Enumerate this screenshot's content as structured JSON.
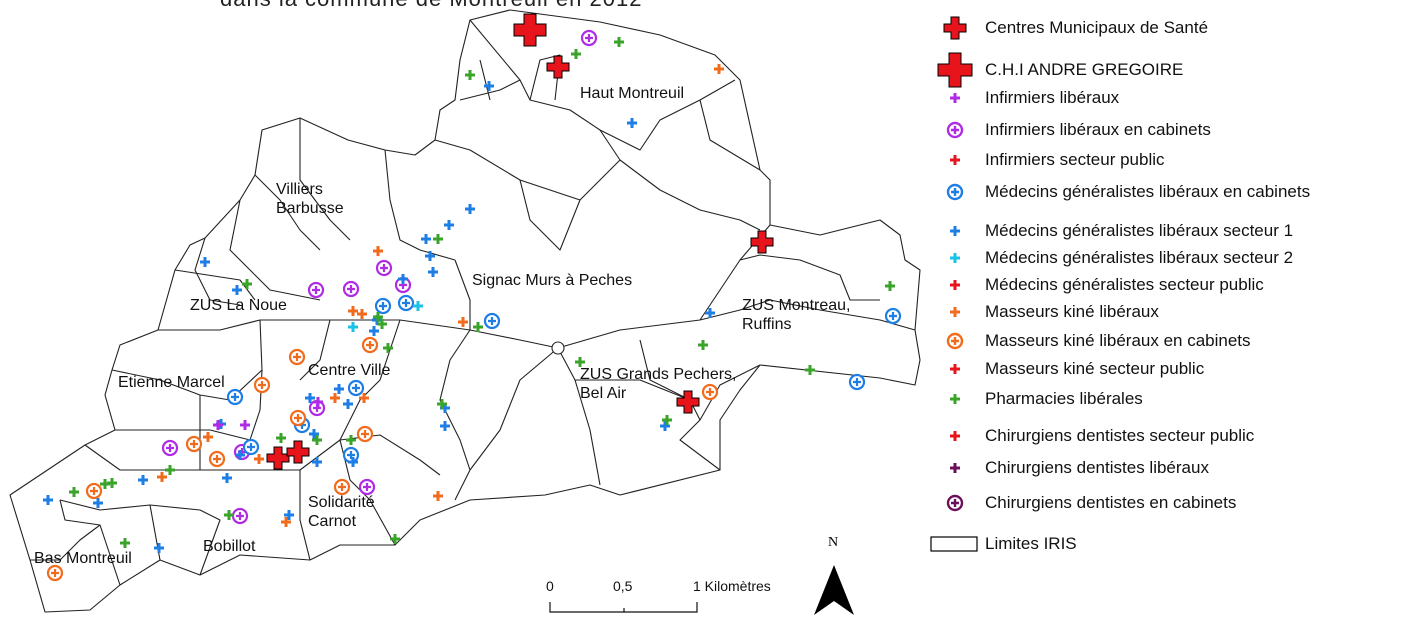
{
  "map": {
    "title_partial": "dans la commune de Montreuil en 2012",
    "areas": [
      {
        "id": "haut-montreuil",
        "label": "Haut Montreuil"
      },
      {
        "id": "villiers-barbusse",
        "label": "Villiers\nBarbusse"
      },
      {
        "id": "signac",
        "label": "Signac Murs à Peches"
      },
      {
        "id": "zus-la-noue",
        "label": "ZUS La Noue"
      },
      {
        "id": "zus-montreau",
        "label": "ZUS Montreau,\nRuffins"
      },
      {
        "id": "centre-ville",
        "label": "Centre Ville"
      },
      {
        "id": "etienne-marcel",
        "label": "Etienne Marcel"
      },
      {
        "id": "zus-grands-pechers",
        "label": "ZUS Grands Pechers,\nBel Air"
      },
      {
        "id": "solidarite-carnot",
        "label": "Solidarité\nCarnot"
      },
      {
        "id": "bobillot",
        "label": "Bobillot"
      },
      {
        "id": "bas-montreuil",
        "label": "Bas Montreuil"
      }
    ]
  },
  "legend": {
    "items": [
      {
        "symbol": "big-red-cross",
        "label": "Centres Municipaux de Santé",
        "color": "#e8141b"
      },
      {
        "symbol": "huge-red-cross",
        "label": "C.H.I ANDRE GREGOIRE",
        "color": "#e8141b"
      },
      {
        "symbol": "small-cross",
        "label": "Infirmiers libéraux",
        "color": "#b02be6"
      },
      {
        "symbol": "ring-cross",
        "label": "Infirmiers libéraux en cabinets",
        "color": "#b02be6"
      },
      {
        "symbol": "small-cross",
        "label": "Infirmiers secteur public",
        "color": "#e8141b"
      },
      {
        "symbol": "ring-cross",
        "label": "Médecins généralistes libéraux en cabinets",
        "color": "#1d7ee6"
      },
      {
        "symbol": "small-cross",
        "label": "Médecins généralistes libéraux secteur 1",
        "color": "#1d7ee6"
      },
      {
        "symbol": "small-cross",
        "label": "Médecins généralistes libéraux secteur 2",
        "color": "#19c2e6"
      },
      {
        "symbol": "small-cross",
        "label": "Médecins généralistes secteur public",
        "color": "#e8141b"
      },
      {
        "symbol": "small-cross",
        "label": "Masseurs kiné libéraux",
        "color": "#f26b1d"
      },
      {
        "symbol": "ring-cross",
        "label": "Masseurs kiné libéraux en cabinets",
        "color": "#f26b1d"
      },
      {
        "symbol": "small-cross",
        "label": "Masseurs kiné secteur public",
        "color": "#e8141b"
      },
      {
        "symbol": "small-cross",
        "label": "Pharmacies libérales",
        "color": "#3aa329"
      },
      {
        "symbol": "small-cross",
        "label": "Chirurgiens dentistes secteur public",
        "color": "#e8141b"
      },
      {
        "symbol": "small-cross",
        "label": "Chirurgiens dentistes libéraux",
        "color": "#6b0f5a"
      },
      {
        "symbol": "ring-cross",
        "label": "Chirurgiens dentistes en cabinets",
        "color": "#6b0f5a"
      },
      {
        "symbol": "rect",
        "label": "Limites IRIS",
        "color": "#000000"
      }
    ]
  },
  "scale": {
    "tick0": "0",
    "tick1": "0,5",
    "tick2": "1 Kilomètres"
  },
  "north": {
    "letter": "N"
  }
}
